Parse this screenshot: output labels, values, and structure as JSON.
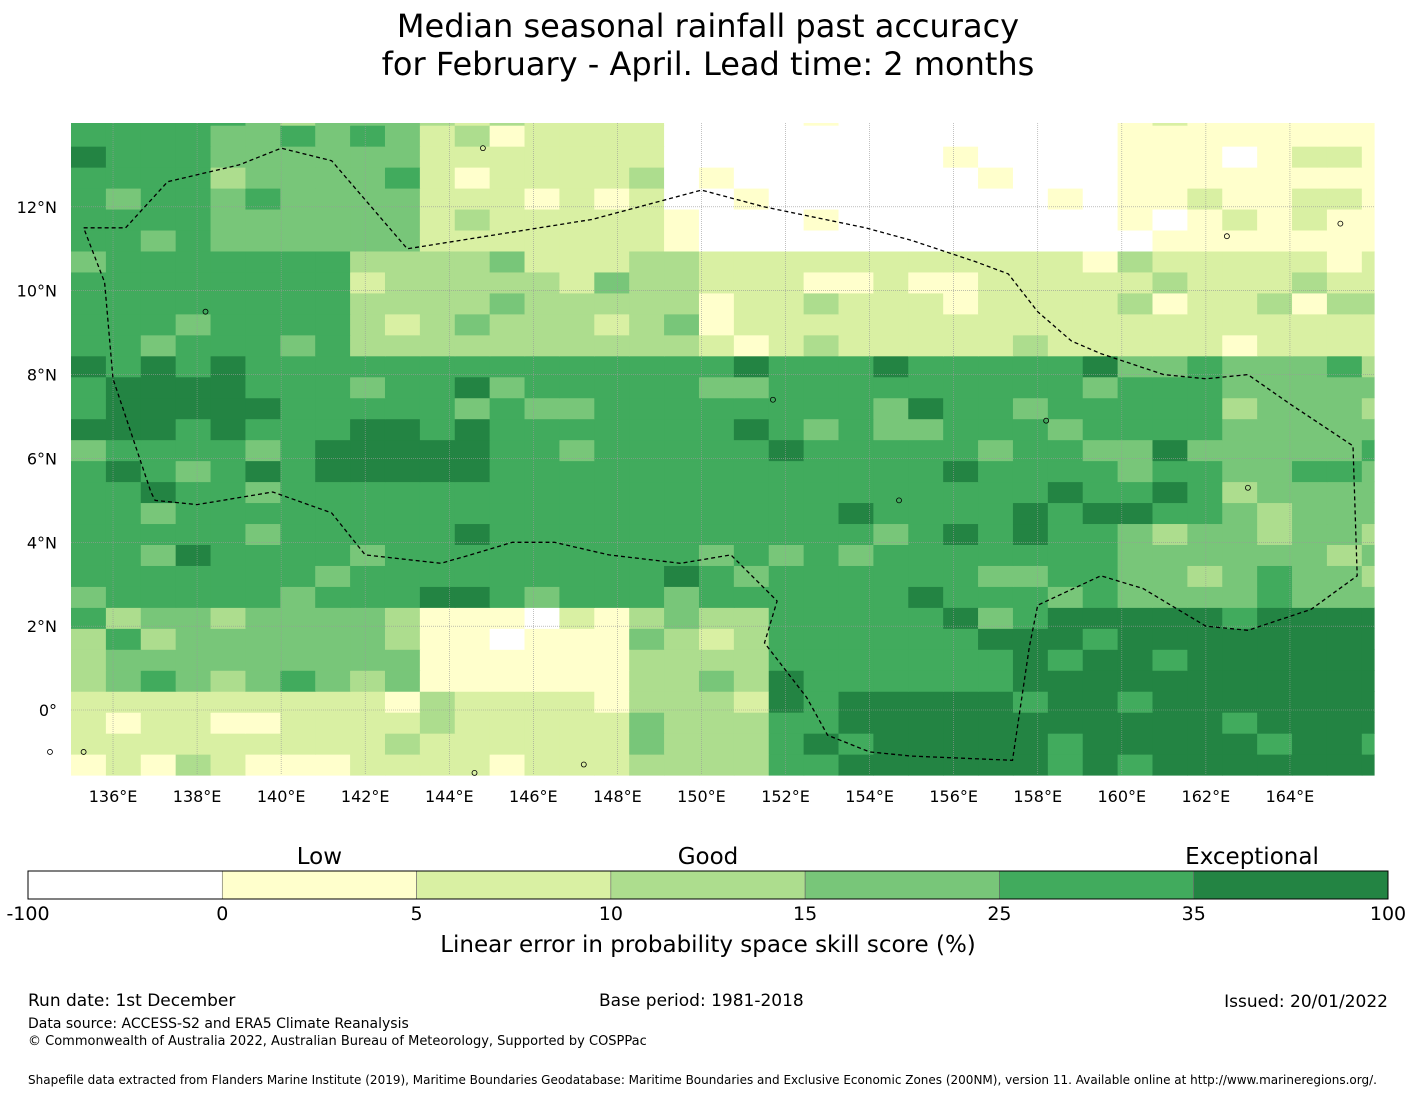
{
  "title": {
    "line1": "Median seasonal rainfall past accuracy",
    "line2": "for February - April. Lead time: 2 months"
  },
  "map": {
    "lon_range": [
      135.0,
      166.0
    ],
    "lat_range": [
      -1.55,
      14.0
    ],
    "lon_ticks": [
      "136°E",
      "138°E",
      "140°E",
      "142°E",
      "144°E",
      "146°E",
      "148°E",
      "150°E",
      "152°E",
      "154°E",
      "156°E",
      "158°E",
      "160°E",
      "162°E",
      "164°E"
    ],
    "lat_ticks": [
      "12°N",
      "10°N",
      "8°N",
      "6°N",
      "4°N",
      "2°N",
      "0°"
    ],
    "grid": true,
    "boundary_style": "dashed"
  },
  "colorbar": {
    "categories": [
      "Low",
      "Good",
      "Exceptional"
    ],
    "edges": [
      "-100",
      "0",
      "5",
      "10",
      "15",
      "25",
      "35",
      "100"
    ],
    "colors": [
      "#ffffff",
      "#ffffcc",
      "#d9f0a3",
      "#addd8e",
      "#78c679",
      "#41ab5d",
      "#238443"
    ],
    "label": "Linear error in probability space skill score (%)"
  },
  "footer": {
    "run_date": "Run date: 1st December",
    "base_period": "Base period: 1981-2018",
    "issued": "Issued: 20/01/2022",
    "data_source": "Data source: ACCESS-S2 and ERA5 Climate Reanalysis",
    "copyright": "© Commonwealth of Australia 2022, Australian Bureau of Meteorology, Supported by COSPPac",
    "shapefile": "Shapefile data extracted from Flanders Marine Institute (2019), Maritime Boundaries Geodatabase: Maritime Boundaries and Exclusive Economic Zones (200NM), version 11. Available online at http://www.marineregions.org/."
  }
}
